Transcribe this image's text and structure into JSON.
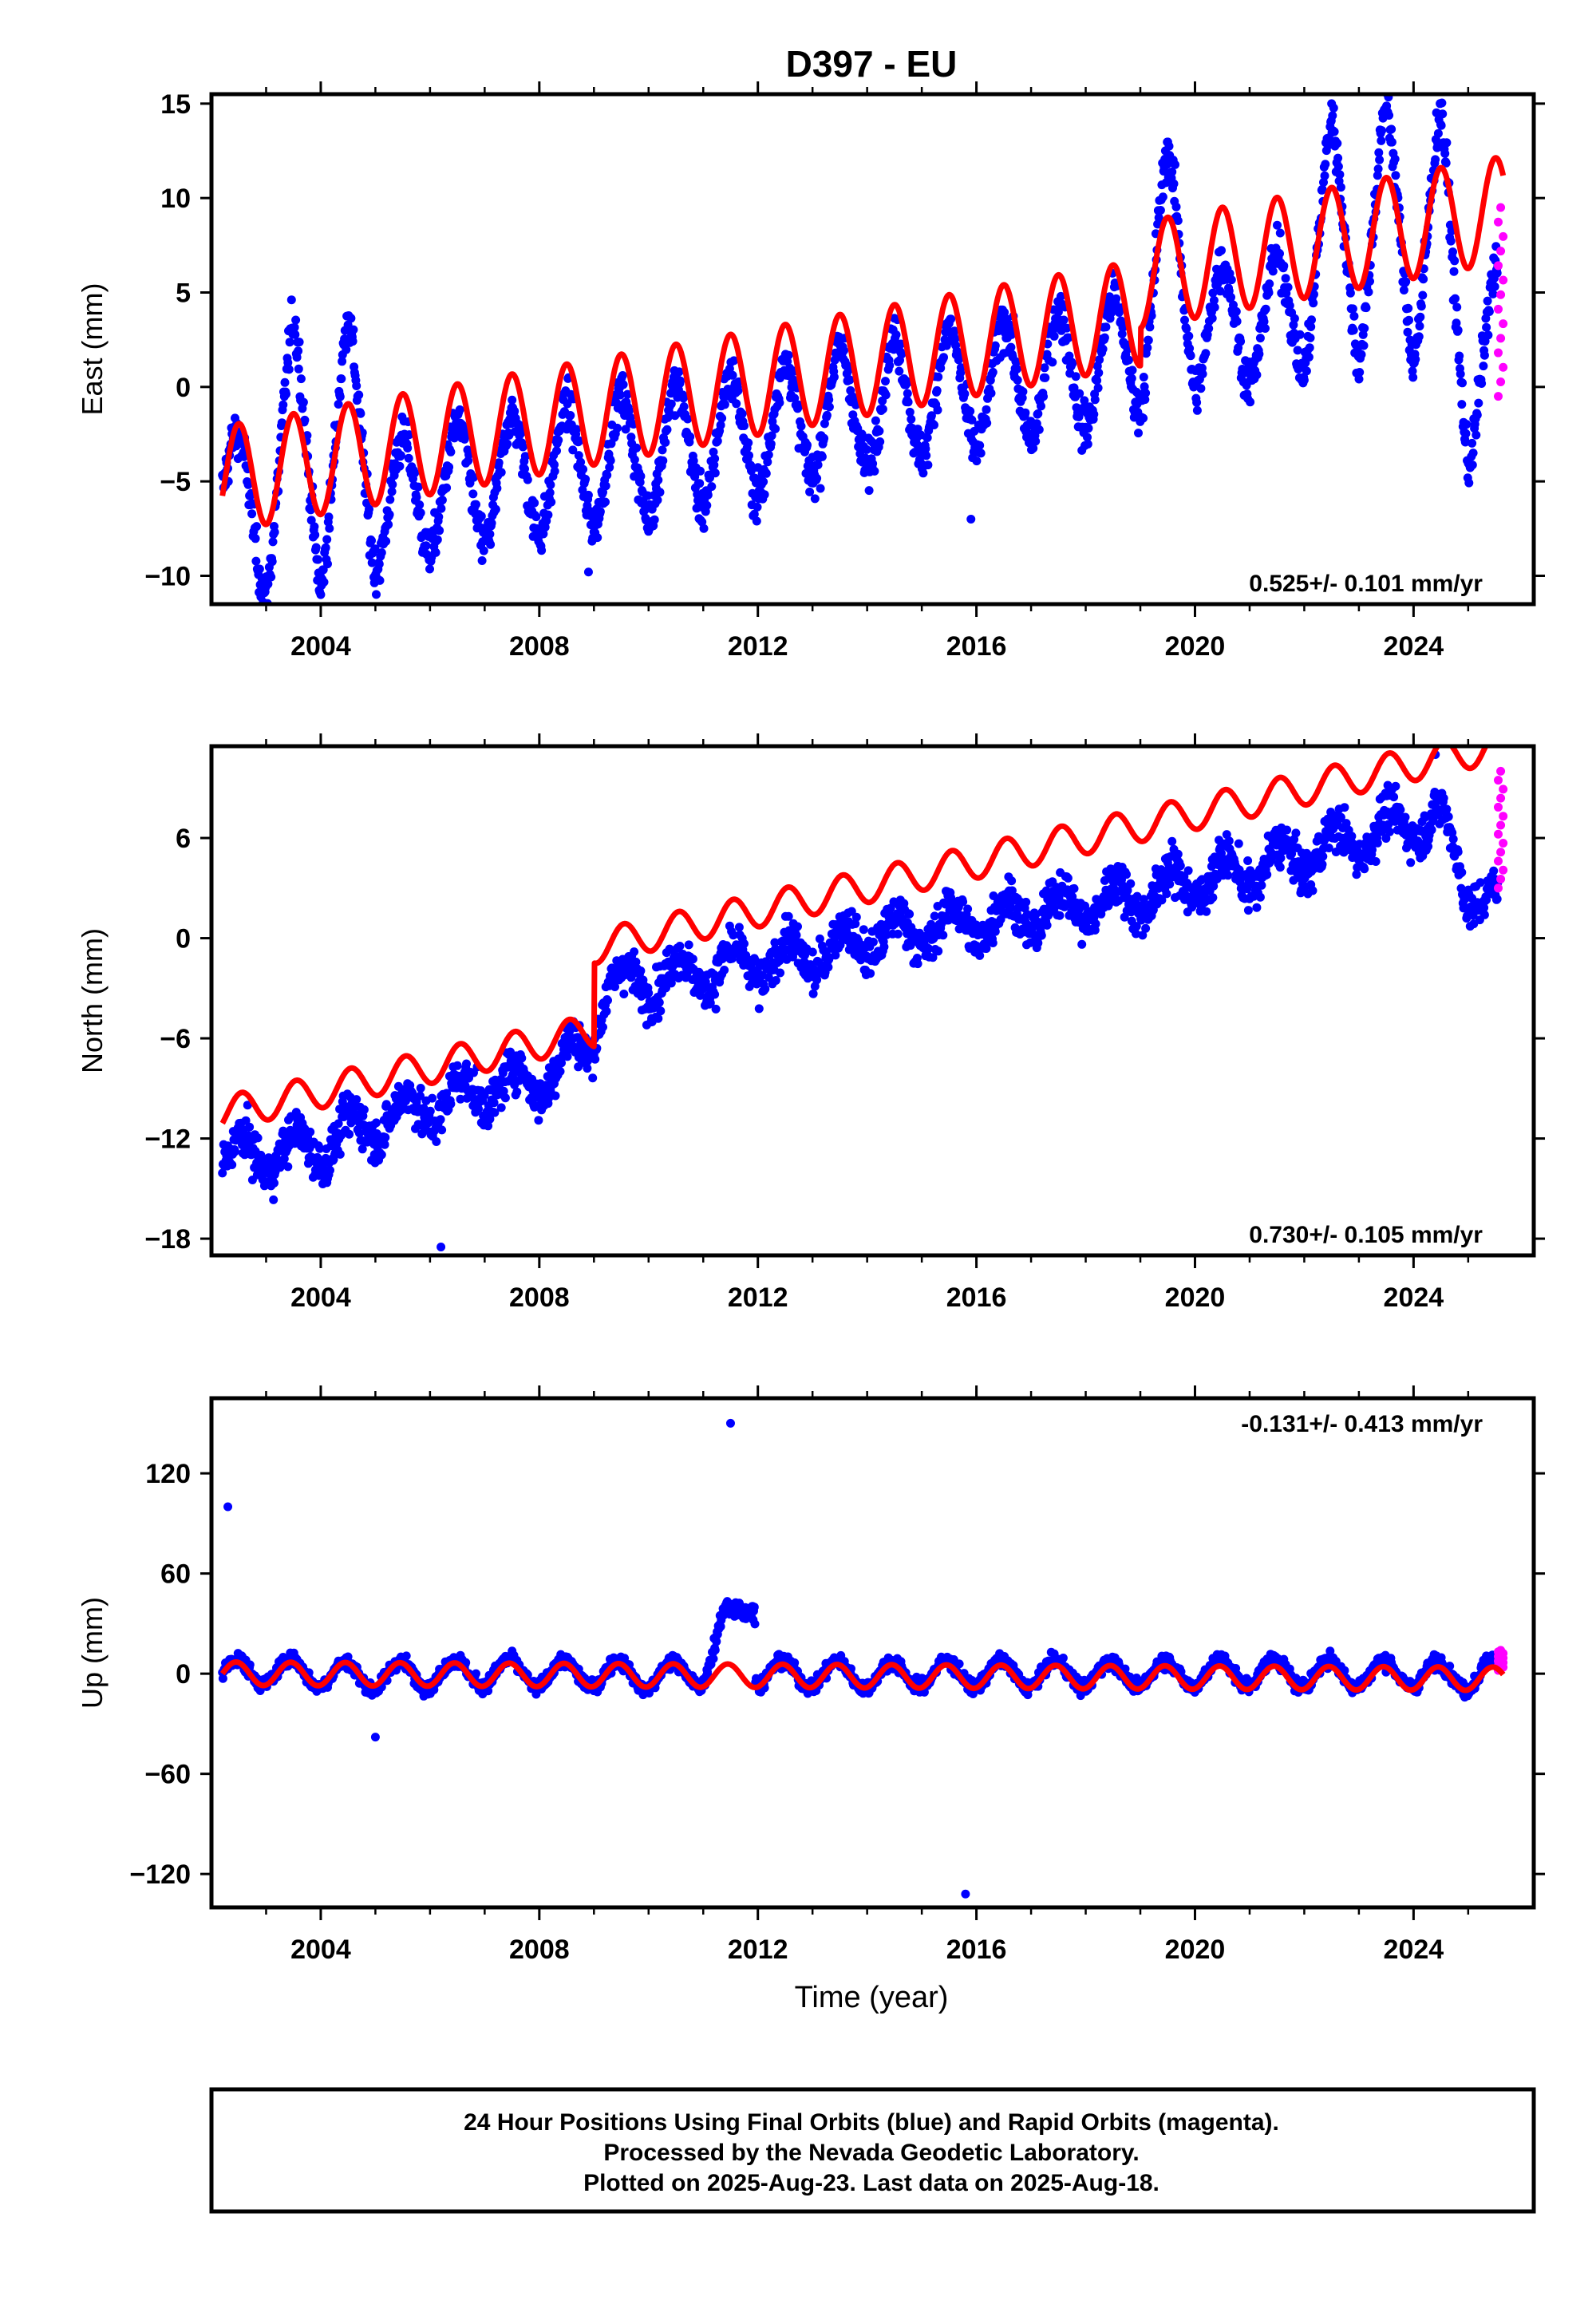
{
  "title": "D397 - EU",
  "x_axis": {
    "label": "Time (year)",
    "range": [
      2002.0,
      2026.2
    ],
    "ticks": [
      2004,
      2008,
      2012,
      2016,
      2020,
      2024
    ],
    "tick_labels": [
      "2004",
      "2008",
      "2012",
      "2016",
      "2020",
      "2024"
    ]
  },
  "colors": {
    "final_orbits": "#0000ff",
    "rapid_orbits": "#ff00ff",
    "model_fit": "#ff0000"
  },
  "panels": {
    "east": {
      "ylabel": "East (mm)",
      "ylim": [
        -11.5,
        15.5
      ],
      "yticks": [
        -10,
        -5,
        0,
        5,
        10,
        15
      ],
      "ytick_labels": [
        "−10",
        "−5",
        "0",
        "5",
        "10",
        "15"
      ],
      "rate": "0.525+/- 0.101 mm/yr"
    },
    "north": {
      "ylabel": "North (mm)",
      "ylim": [
        -19,
        11.5
      ],
      "yticks": [
        -18,
        -12,
        -6,
        0,
        6
      ],
      "ytick_labels": [
        "−18",
        "−12",
        "−6",
        "0",
        "6"
      ],
      "rate": "0.730+/- 0.105 mm/yr"
    },
    "up": {
      "ylabel": "Up (mm)",
      "ylim": [
        -140,
        165
      ],
      "yticks": [
        -120,
        -60,
        0,
        60,
        120
      ],
      "ytick_labels": [
        "−120",
        "−60",
        "0",
        "60",
        "120"
      ],
      "rate": "-0.131+/- 0.413 mm/yr"
    }
  },
  "footer": {
    "line1": "24 Hour Positions Using Final Orbits (blue) and Rapid Orbits (magenta).",
    "line2": "Processed by the Nevada Geodetic Laboratory.",
    "line3": "Plotted on 2025-Aug-23. Last data on 2025-Aug-18."
  },
  "chart_data": [
    {
      "type": "scatter",
      "component": "east",
      "ylabel": "East (mm)",
      "xlabel": "Time (year)",
      "xlim": [
        2002.0,
        2026.2
      ],
      "ylim": [
        -11.5,
        15.5
      ],
      "x": [
        2002.2,
        2003.0,
        2003.5,
        2004.0,
        2004.5,
        2005.0,
        2006.0,
        2007.0,
        2008.0,
        2009.0,
        2010.0,
        2011.0,
        2012.0,
        2013.0,
        2014.0,
        2015.0,
        2016.0,
        2017.0,
        2018.0,
        2019.0,
        2019.5,
        2020.0,
        2021.0,
        2022.0,
        2022.5,
        2023.0,
        2023.5,
        2024.0,
        2024.5,
        2025.0,
        2025.5
      ],
      "y": [
        -4.5,
        -8.0,
        0.5,
        -7.5,
        0.5,
        -6.5,
        -5.5,
        -5.0,
        -4.5,
        -4.0,
        -3.5,
        -3.0,
        -2.5,
        -1.5,
        -1.0,
        -0.5,
        0.0,
        0.5,
        1.0,
        2.0,
        9.5,
        3.0,
        3.5,
        4.0,
        11.0,
        4.5,
        12.0,
        4.5,
        11.5,
        -1.0,
        3.0
      ],
      "outliers": [
        {
          "x": 2004.0,
          "y": -11.0
        },
        {
          "x": 2008.9,
          "y": -9.8
        },
        {
          "x": 2015.9,
          "y": -7.0
        },
        {
          "x": 2022.5,
          "y": 15.0
        },
        {
          "x": 2023.5,
          "y": 14.7
        }
      ],
      "rapid_x": [
        2025.55,
        2025.6,
        2025.64
      ],
      "rapid_y": [
        -0.5,
        4.0,
        9.5
      ],
      "model": {
        "offset": -4.9,
        "rate": 0.525,
        "amplitude": 2.8,
        "phase_year": 0.25,
        "ref_year": 2002.2,
        "jump": {
          "year": 2019.0,
          "value": 2.0
        }
      }
    },
    {
      "type": "scatter",
      "component": "north",
      "ylabel": "North (mm)",
      "xlabel": "Time (year)",
      "xlim": [
        2002.0,
        2026.2
      ],
      "ylim": [
        -19,
        11.5
      ],
      "x": [
        2002.2,
        2003.0,
        2004.0,
        2005.0,
        2006.0,
        2007.0,
        2008.0,
        2008.9,
        2009.2,
        2010.0,
        2011.0,
        2012.0,
        2013.0,
        2014.0,
        2015.0,
        2016.0,
        2017.0,
        2018.0,
        2019.0,
        2020.0,
        2021.0,
        2022.0,
        2023.0,
        2024.0,
        2024.5,
        2025.0,
        2025.5
      ],
      "y": [
        -13.0,
        -13.0,
        -12.5,
        -11.0,
        -10.0,
        -9.0,
        -8.5,
        -6.5,
        -3.0,
        -2.5,
        -2.0,
        -1.5,
        -1.0,
        0.0,
        0.5,
        1.0,
        1.5,
        2.0,
        2.5,
        3.5,
        4.0,
        5.0,
        6.0,
        7.0,
        7.0,
        3.0,
        2.0
      ],
      "outliers": [
        {
          "x": 2006.2,
          "y": -18.5
        },
        {
          "x": 2024.4,
          "y": 11.0
        }
      ],
      "rapid_x": [
        2025.55,
        2025.6,
        2025.64
      ],
      "rapid_y": [
        3.0,
        6.5,
        10.0
      ],
      "model": {
        "offset": -10.5,
        "rate": 0.73,
        "amplitude": 1.0,
        "phase_year": 0.3,
        "ref_year": 2002.2,
        "jump": {
          "year": 2009.0,
          "value": 5.0
        }
      }
    },
    {
      "type": "scatter",
      "component": "up",
      "ylabel": "Up (mm)",
      "xlabel": "Time (year)",
      "xlim": [
        2002.0,
        2026.2
      ],
      "ylim": [
        -140,
        165
      ],
      "x": [
        2002.2,
        2003.0,
        2004.0,
        2005.0,
        2006.0,
        2007.0,
        2008.0,
        2009.0,
        2010.0,
        2011.0,
        2011.5,
        2012.0,
        2013.0,
        2014.0,
        2015.0,
        2016.0,
        2017.0,
        2018.0,
        2019.0,
        2020.0,
        2021.0,
        2022.0,
        2023.0,
        2024.0,
        2025.0,
        2025.5
      ],
      "y": [
        0.0,
        2.0,
        0.0,
        -2.0,
        0.0,
        1.0,
        0.0,
        0.0,
        -1.0,
        0.0,
        40.0,
        0.0,
        0.0,
        -1.0,
        0.0,
        0.0,
        0.0,
        0.0,
        0.0,
        0.0,
        1.0,
        0.0,
        0.0,
        0.0,
        -2.0,
        2.0
      ],
      "outliers": [
        {
          "x": 2002.3,
          "y": 100
        },
        {
          "x": 2011.5,
          "y": 150
        },
        {
          "x": 2005.0,
          "y": -38
        },
        {
          "x": 2015.8,
          "y": -132
        }
      ],
      "rapid_x": [
        2025.55,
        2025.6,
        2025.64
      ],
      "rapid_y": [
        2.0,
        8.0,
        14.0
      ],
      "model": {
        "offset": 0.0,
        "rate": -0.131,
        "amplitude": 7.0,
        "phase_year": 0.2,
        "ref_year": 2002.2,
        "jump": {
          "year": 2009.0,
          "value": 0.0
        }
      }
    }
  ]
}
